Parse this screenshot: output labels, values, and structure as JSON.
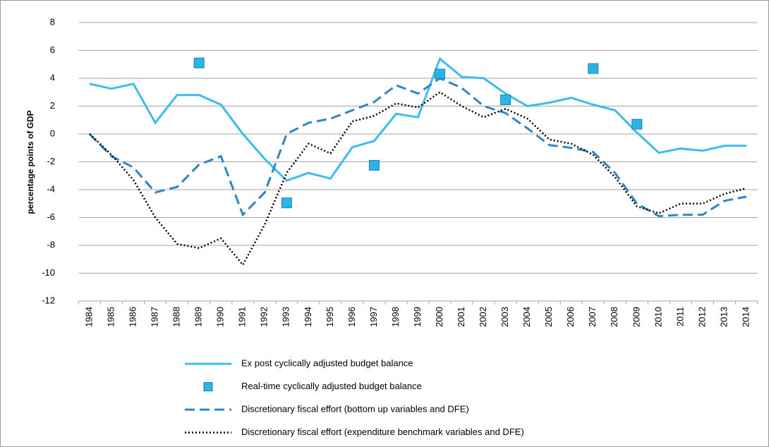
{
  "chart_data": {
    "type": "line",
    "y_axis_label": "percentage points of GDP",
    "categories": [
      "1984",
      "1985",
      "1986",
      "1987",
      "1988",
      "1989",
      "1990",
      "1991",
      "1992",
      "1993",
      "1994",
      "1995",
      "1996",
      "1997",
      "1998",
      "1999",
      "2000",
      "2001",
      "2002",
      "2003",
      "2004",
      "2005",
      "2006",
      "2007",
      "2008",
      "2009",
      "2010",
      "2011",
      "2012",
      "2013",
      "2014"
    ],
    "ylim": [
      -12,
      8
    ],
    "yticks": [
      -12,
      -10,
      -8,
      -6,
      -4,
      -2,
      0,
      2,
      4,
      6,
      8
    ],
    "grid": true,
    "legend": "bottom",
    "series": [
      {
        "name": "Ex post cyclically adjusted budget balance",
        "color": "#3dbdeb",
        "style": "solid",
        "values": [
          3.6,
          3.25,
          3.6,
          0.8,
          2.8,
          2.8,
          2.1,
          0.0,
          -1.8,
          -3.35,
          -2.8,
          -3.2,
          -0.95,
          -0.5,
          1.45,
          1.2,
          5.4,
          4.1,
          4.0,
          2.9,
          2.0,
          2.25,
          2.6,
          2.1,
          1.7,
          0.1,
          -1.35,
          -1.05,
          -1.2,
          -0.85,
          -0.85
        ]
      },
      {
        "name": "Real-time cyclically adjusted budget balance",
        "color": "#2bb5e6",
        "style": "markers",
        "values": [
          null,
          null,
          null,
          null,
          null,
          5.1,
          null,
          null,
          null,
          -4.95,
          null,
          null,
          null,
          -2.25,
          null,
          null,
          4.3,
          null,
          null,
          2.45,
          null,
          null,
          null,
          4.7,
          null,
          0.7,
          null,
          null,
          null,
          null,
          null
        ]
      },
      {
        "name": "Discretionary fiscal effort (bottom up variables and DFE)",
        "color": "#2e86c6",
        "style": "dashed",
        "values": [
          0,
          -1.6,
          -2.4,
          -4.2,
          -3.8,
          -2.2,
          -1.6,
          -5.8,
          -4.2,
          0.0,
          0.8,
          1.1,
          1.7,
          2.3,
          3.5,
          2.9,
          4.0,
          3.3,
          2.0,
          1.5,
          0.4,
          -0.8,
          -1.0,
          -1.3,
          -2.8,
          -5.0,
          -5.9,
          -5.8,
          -5.8,
          -4.8,
          -4.5
        ]
      },
      {
        "name": "Discretionary fiscal effort (expenditure benchmark variables and DFE)",
        "color": "#000000",
        "style": "dotted",
        "values": [
          0,
          -1.5,
          -3.3,
          -6.0,
          -7.9,
          -8.2,
          -7.5,
          -9.4,
          -6.5,
          -2.8,
          -0.7,
          -1.4,
          0.9,
          1.3,
          2.2,
          1.9,
          3.0,
          2.0,
          1.2,
          1.8,
          1.1,
          -0.4,
          -0.7,
          -1.5,
          -3.1,
          -5.2,
          -5.7,
          -5.0,
          -5.0,
          -4.3,
          -3.9
        ]
      }
    ]
  }
}
